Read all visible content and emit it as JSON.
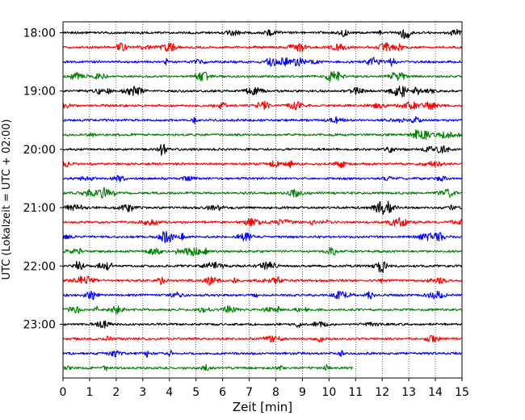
{
  "chart_data": {
    "type": "line",
    "title": "",
    "xlabel": "Zeit  [min]",
    "ylabel": "UTC (Lokalzeit = UTC + 02:00)",
    "xlim": [
      0,
      15
    ],
    "x_ticks": [
      "0",
      "1",
      "2",
      "3",
      "4",
      "5",
      "6",
      "7",
      "8",
      "9",
      "10",
      "11",
      "12",
      "13",
      "14",
      "15"
    ],
    "y_ticks": [
      "18:00",
      "19:00",
      "20:00",
      "21:00",
      "22:00",
      "23:00"
    ],
    "grid": "vertical dotted",
    "legend": "none",
    "rows_per_hour": 4,
    "trace_colors": [
      "#000000",
      "#ff0000",
      "#0000ff",
      "#008000"
    ],
    "traces": [
      {
        "start": "18:00",
        "color": "#000000",
        "x_end": 15
      },
      {
        "start": "18:15",
        "color": "#ff0000",
        "x_end": 15
      },
      {
        "start": "18:30",
        "color": "#0000ff",
        "x_end": 15
      },
      {
        "start": "18:45",
        "color": "#008000",
        "x_end": 15
      },
      {
        "start": "19:00",
        "color": "#000000",
        "x_end": 15
      },
      {
        "start": "19:15",
        "color": "#ff0000",
        "x_end": 15
      },
      {
        "start": "19:30",
        "color": "#0000ff",
        "x_end": 15
      },
      {
        "start": "19:45",
        "color": "#008000",
        "x_end": 15
      },
      {
        "start": "20:00",
        "color": "#000000",
        "x_end": 15
      },
      {
        "start": "20:15",
        "color": "#ff0000",
        "x_end": 15
      },
      {
        "start": "20:30",
        "color": "#0000ff",
        "x_end": 15
      },
      {
        "start": "20:45",
        "color": "#008000",
        "x_end": 15
      },
      {
        "start": "21:00",
        "color": "#000000",
        "x_end": 15
      },
      {
        "start": "21:15",
        "color": "#ff0000",
        "x_end": 15
      },
      {
        "start": "21:30",
        "color": "#0000ff",
        "x_end": 15
      },
      {
        "start": "21:45",
        "color": "#008000",
        "x_end": 15
      },
      {
        "start": "22:00",
        "color": "#000000",
        "x_end": 15
      },
      {
        "start": "22:15",
        "color": "#ff0000",
        "x_end": 15
      },
      {
        "start": "22:30",
        "color": "#0000ff",
        "x_end": 15
      },
      {
        "start": "22:45",
        "color": "#008000",
        "x_end": 15
      },
      {
        "start": "23:00",
        "color": "#000000",
        "x_end": 15
      },
      {
        "start": "23:15",
        "color": "#ff0000",
        "x_end": 15
      },
      {
        "start": "23:30",
        "color": "#0000ff",
        "x_end": 15
      },
      {
        "start": "23:45",
        "color": "#008000",
        "x_end": 10.9
      }
    ]
  }
}
